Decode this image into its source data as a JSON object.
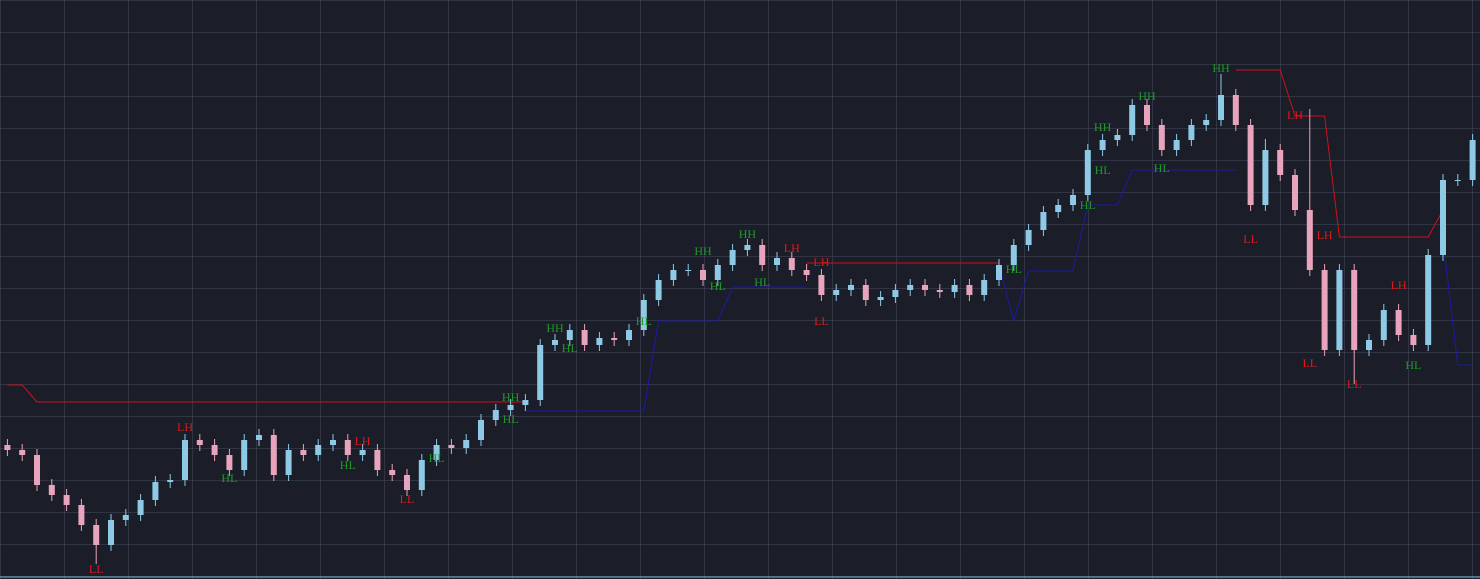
{
  "chart_data": {
    "type": "candlestick",
    "ylim": [
      0,
      579
    ],
    "up_color": "#8ecae6",
    "down_color": "#e8a4bc",
    "open": [
      134,
      129,
      124,
      94,
      84,
      74,
      54,
      34,
      59,
      64,
      79,
      97,
      99,
      139,
      134,
      124,
      109,
      139,
      144,
      104,
      129,
      124,
      134,
      139,
      124,
      129,
      109,
      104,
      89,
      119,
      134,
      131,
      139,
      159,
      169,
      174,
      179,
      234,
      239,
      249,
      234,
      241,
      239,
      249,
      279,
      299,
      309,
      309,
      299,
      314,
      329,
      334,
      314,
      321,
      309,
      304,
      284,
      289,
      294,
      279,
      282,
      289,
      294,
      289,
      287,
      294,
      284,
      299,
      314,
      334,
      349,
      367,
      374,
      384,
      429,
      439,
      444,
      474,
      454,
      429,
      439,
      454,
      459,
      484,
      454,
      374,
      429,
      404,
      369,
      309,
      229,
      309,
      229,
      239,
      269,
      244,
      234,
      324,
      399,
      399
    ],
    "high": [
      140,
      135,
      130,
      100,
      90,
      80,
      60,
      65,
      70,
      85,
      103,
      105,
      145,
      145,
      140,
      130,
      145,
      150,
      150,
      135,
      135,
      140,
      145,
      145,
      135,
      135,
      115,
      110,
      125,
      140,
      140,
      145,
      165,
      175,
      180,
      185,
      240,
      245,
      255,
      255,
      247,
      247,
      255,
      285,
      305,
      315,
      315,
      315,
      320,
      335,
      340,
      340,
      327,
      327,
      315,
      310,
      295,
      300,
      300,
      288,
      295,
      300,
      300,
      295,
      300,
      300,
      305,
      320,
      340,
      355,
      373,
      380,
      390,
      435,
      445,
      450,
      480,
      480,
      460,
      445,
      460,
      465,
      505,
      490,
      460,
      440,
      435,
      410,
      470,
      315,
      315,
      315,
      245,
      275,
      275,
      250,
      330,
      405,
      405,
      445
    ],
    "low": [
      123,
      118,
      88,
      78,
      68,
      48,
      15,
      28,
      53,
      58,
      73,
      91,
      93,
      128,
      118,
      103,
      103,
      133,
      98,
      98,
      118,
      118,
      128,
      118,
      118,
      103,
      98,
      83,
      83,
      113,
      125,
      125,
      133,
      153,
      163,
      168,
      173,
      228,
      233,
      228,
      228,
      233,
      233,
      243,
      273,
      293,
      303,
      293,
      293,
      308,
      323,
      308,
      308,
      303,
      298,
      278,
      278,
      283,
      273,
      273,
      276,
      283,
      283,
      281,
      281,
      278,
      278,
      293,
      308,
      328,
      343,
      361,
      368,
      378,
      423,
      433,
      438,
      448,
      423,
      423,
      433,
      448,
      453,
      448,
      368,
      368,
      398,
      363,
      303,
      223,
      223,
      195,
      223,
      233,
      238,
      228,
      228,
      318,
      393,
      393
    ],
    "close": [
      129,
      124,
      94,
      84,
      74,
      54,
      34,
      59,
      64,
      79,
      97,
      99,
      139,
      134,
      124,
      109,
      139,
      144,
      104,
      129,
      124,
      134,
      139,
      124,
      129,
      109,
      104,
      89,
      119,
      134,
      131,
      139,
      159,
      169,
      174,
      179,
      234,
      239,
      249,
      234,
      241,
      239,
      249,
      279,
      299,
      309,
      309,
      299,
      314,
      329,
      334,
      314,
      321,
      309,
      304,
      284,
      289,
      294,
      279,
      282,
      289,
      294,
      289,
      287,
      294,
      284,
      299,
      314,
      334,
      349,
      367,
      374,
      384,
      429,
      439,
      444,
      474,
      454,
      429,
      439,
      454,
      459,
      484,
      454,
      374,
      429,
      404,
      369,
      309,
      229,
      309,
      229,
      239,
      269,
      244,
      234,
      324,
      399,
      399,
      439
    ],
    "series": [
      {
        "color": "#d0101a",
        "values": [
          194,
          194,
          177,
          177,
          177,
          177,
          177,
          177,
          177,
          177,
          177,
          177,
          177,
          177,
          177,
          177,
          177,
          177,
          177,
          177,
          177,
          177,
          177,
          177,
          177,
          177,
          177,
          177,
          177,
          177,
          177,
          177,
          177,
          177,
          177,
          177,
          null,
          null,
          null,
          null,
          null,
          null,
          null,
          null,
          null,
          null,
          null,
          null,
          null,
          null,
          null,
          null,
          null,
          null,
          316,
          316,
          316,
          316,
          316,
          316,
          316,
          316,
          316,
          316,
          316,
          316,
          316,
          316,
          null,
          null,
          null,
          null,
          null,
          null,
          null,
          null,
          null,
          null,
          null,
          null,
          null,
          null,
          null,
          509,
          509,
          509,
          509,
          463,
          463,
          463,
          342,
          342,
          342,
          342,
          342,
          342,
          342,
          369,
          null,
          null
        ]
      },
      {
        "color": "#1a1aa8",
        "values": [
          null,
          null,
          null,
          null,
          null,
          null,
          null,
          null,
          null,
          null,
          null,
          null,
          null,
          null,
          null,
          null,
          null,
          null,
          null,
          null,
          null,
          null,
          null,
          null,
          null,
          null,
          null,
          null,
          null,
          null,
          null,
          null,
          null,
          null,
          null,
          168,
          168,
          168,
          168,
          168,
          168,
          168,
          168,
          168,
          258,
          258,
          258,
          258,
          258,
          292,
          292,
          292,
          292,
          292,
          292,
          null,
          null,
          null,
          null,
          null,
          null,
          null,
          null,
          null,
          null,
          null,
          null,
          314,
          258,
          308,
          308,
          308,
          308,
          374,
          374,
          374,
          409,
          409,
          409,
          409,
          409,
          409,
          409,
          409,
          null,
          null,
          null,
          null,
          null,
          null,
          null,
          null,
          null,
          null,
          null,
          null,
          null,
          339,
          214,
          214
        ]
      }
    ],
    "annotations": [
      {
        "label": "LL",
        "index": 6,
        "value": 9
      },
      {
        "label": "LH",
        "index": 12,
        "value": 151
      },
      {
        "label": "HL",
        "index": 15,
        "value": 100
      },
      {
        "label": "LH",
        "index": 24,
        "value": 137
      },
      {
        "label": "HL",
        "index": 23,
        "value": 113
      },
      {
        "label": "HL",
        "index": 29,
        "value": 120
      },
      {
        "label": "LL",
        "index": 27,
        "value": 79
      },
      {
        "label": "HH",
        "index": 34,
        "value": 181
      },
      {
        "label": "HL",
        "index": 34,
        "value": 159
      },
      {
        "label": "HH",
        "index": 37,
        "value": 250
      },
      {
        "label": "HL",
        "index": 38,
        "value": 230
      },
      {
        "label": "HL",
        "index": 43,
        "value": 257
      },
      {
        "label": "HH",
        "index": 47,
        "value": 327
      },
      {
        "label": "HL",
        "index": 48,
        "value": 292
      },
      {
        "label": "HH",
        "index": 50,
        "value": 344
      },
      {
        "label": "HL",
        "index": 51,
        "value": 296
      },
      {
        "label": "LH",
        "index": 53,
        "value": 330
      },
      {
        "label": "LH",
        "index": 55,
        "value": 316
      },
      {
        "label": "LL",
        "index": 55,
        "value": 257
      },
      {
        "label": "HL",
        "index": 68,
        "value": 309
      },
      {
        "label": "HH",
        "index": 74,
        "value": 451
      },
      {
        "label": "HL",
        "index": 74,
        "value": 408
      },
      {
        "label": "HL",
        "index": 73,
        "value": 373
      },
      {
        "label": "HH",
        "index": 77,
        "value": 482
      },
      {
        "label": "HL",
        "index": 78,
        "value": 410
      },
      {
        "label": "HH",
        "index": 82,
        "value": 510
      },
      {
        "label": "LL",
        "index": 84,
        "value": 339
      },
      {
        "label": "LH",
        "index": 87,
        "value": 463
      },
      {
        "label": "LH",
        "index": 89,
        "value": 343
      },
      {
        "label": "LL",
        "index": 88,
        "value": 215
      },
      {
        "label": "LL",
        "index": 91,
        "value": 194
      },
      {
        "label": "LH",
        "index": 94,
        "value": 293
      },
      {
        "label": "HL",
        "index": 95,
        "value": 213
      }
    ],
    "annotation_colors": {
      "HH": "#1f9a2a",
      "HL": "#1f9a2a",
      "LH": "#e01818",
      "LL": "#e01818"
    }
  }
}
